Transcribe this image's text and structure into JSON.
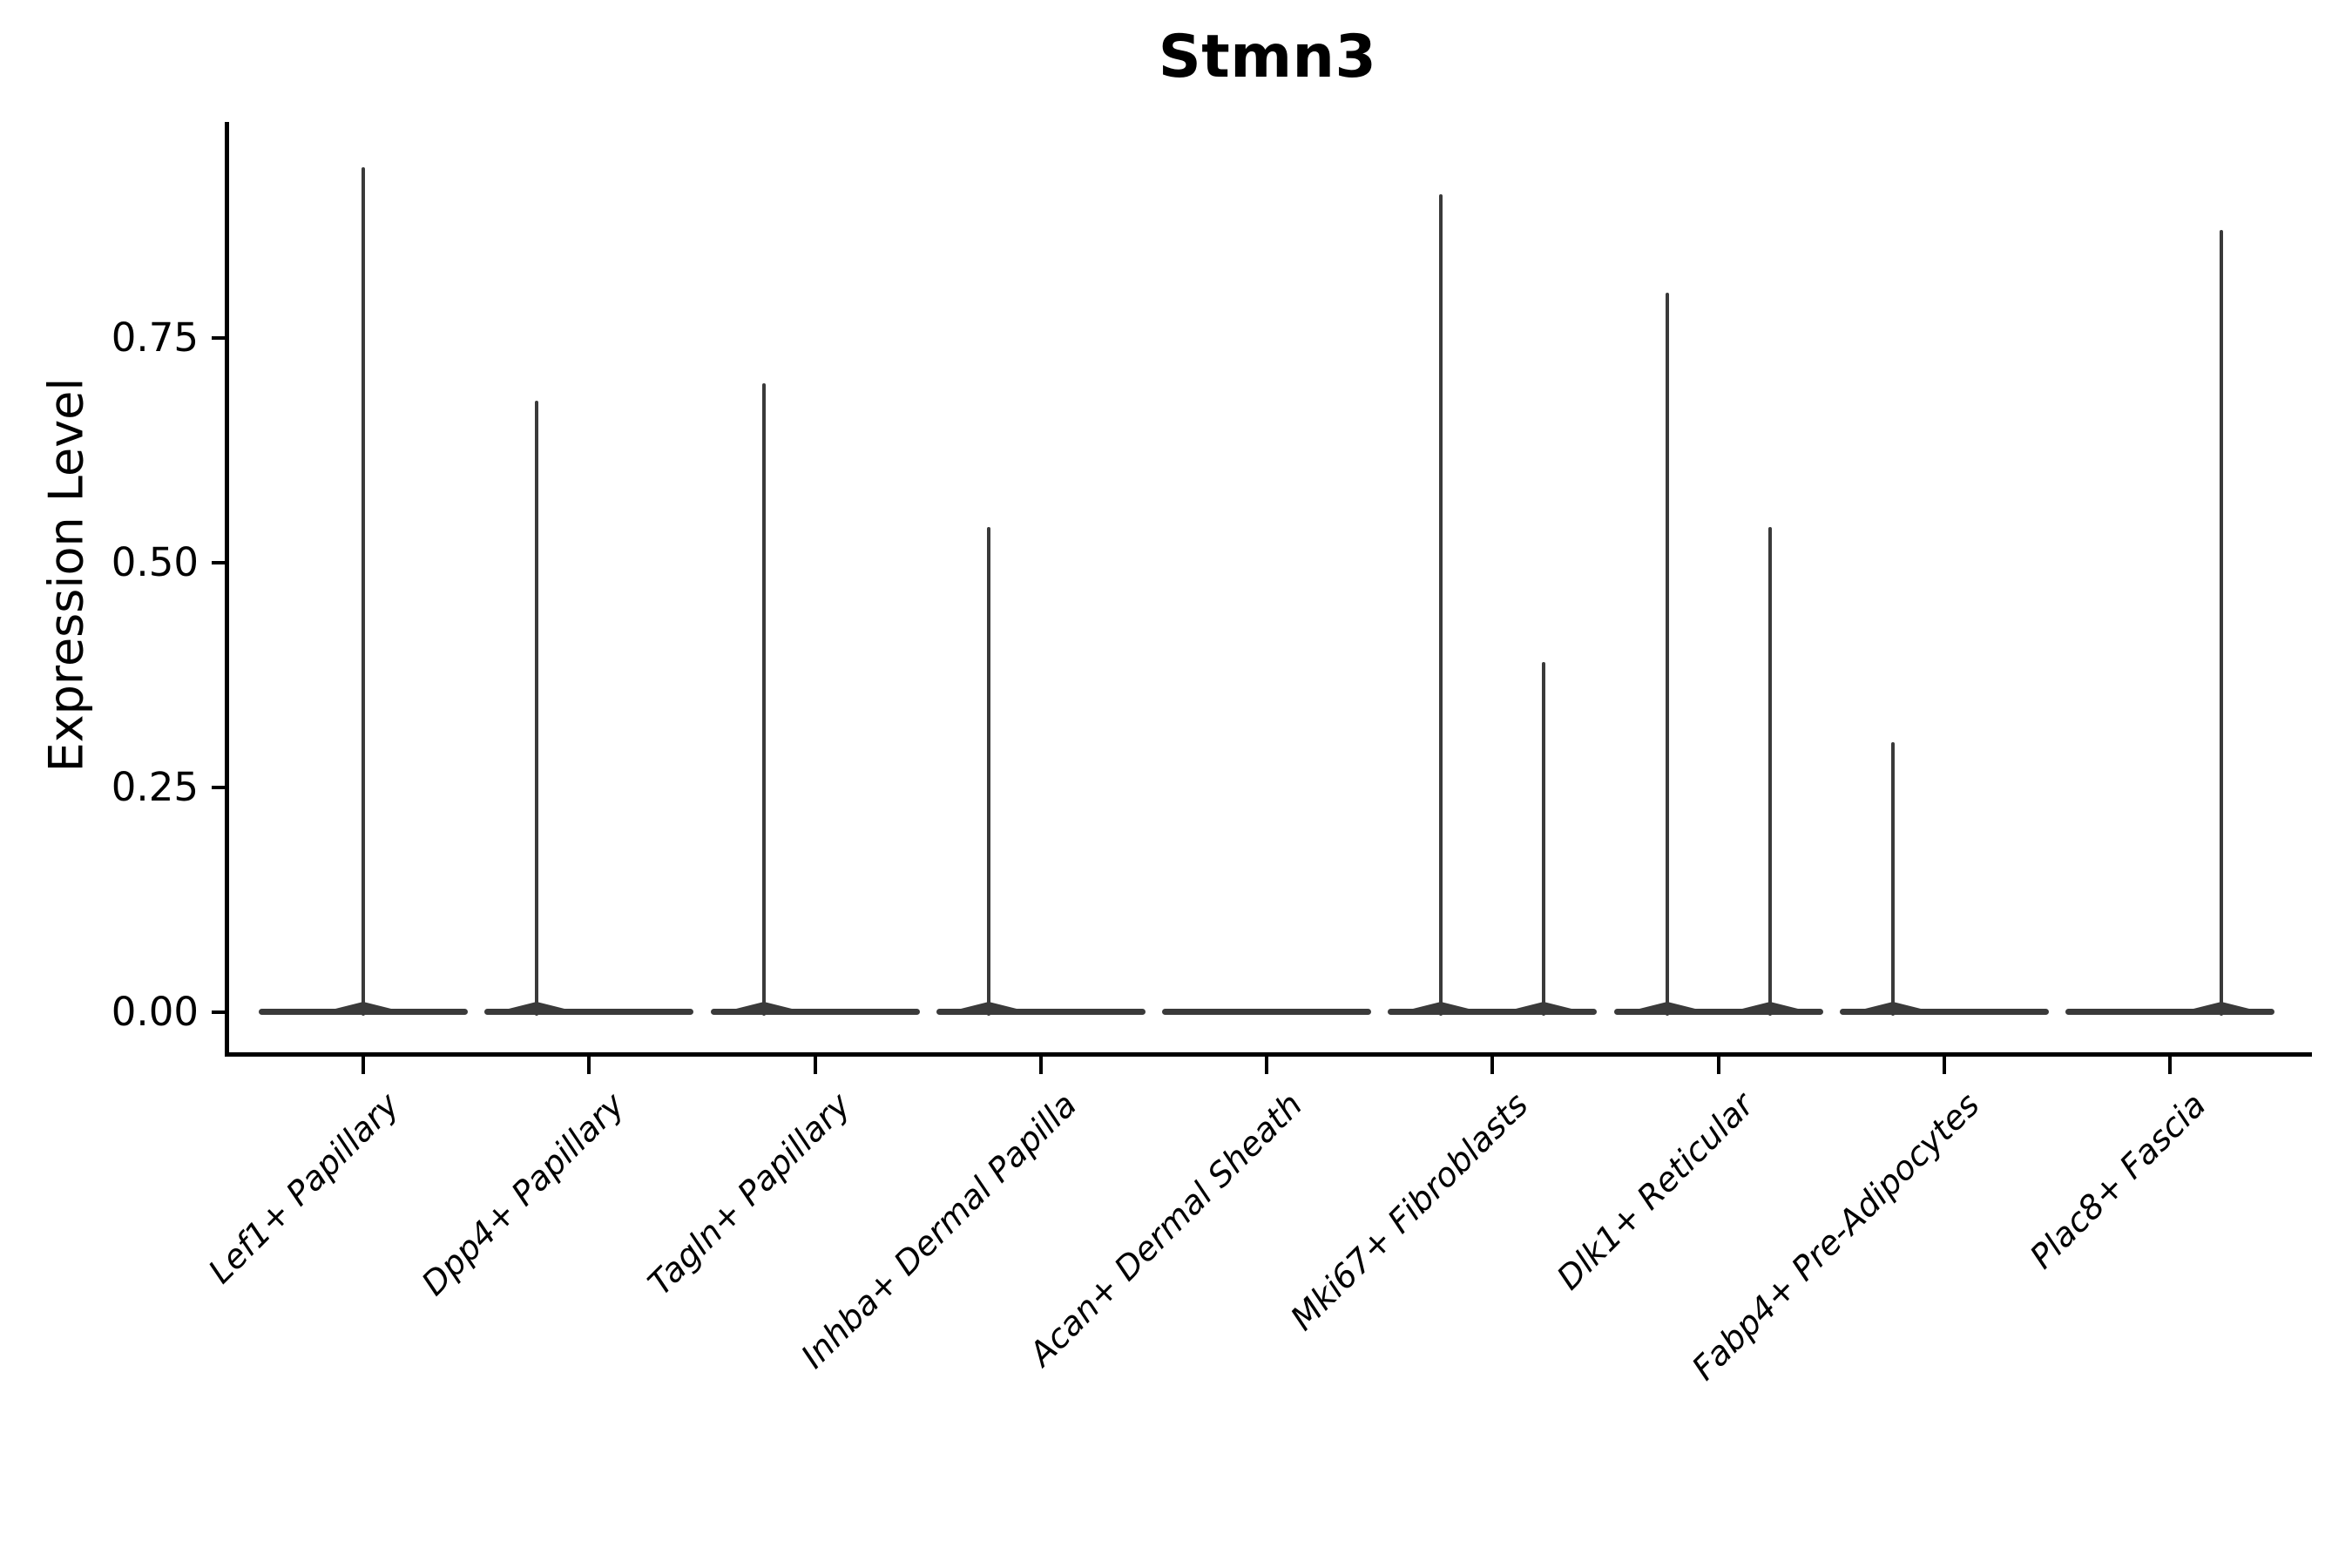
{
  "colors": {
    "foreground": "#000000",
    "violin": "#3a3a3a",
    "background": "#ffffff"
  },
  "chart_data": {
    "type": "violin",
    "title": "Stmn3",
    "xlabel": "",
    "ylabel": "Expression Level",
    "grid": false,
    "legend": null,
    "ylim": [
      -0.05,
      0.99
    ],
    "yticks": {
      "values": [
        0.0,
        0.25,
        0.5,
        0.75
      ],
      "labels": [
        "0.00",
        "0.25",
        "0.50",
        "0.75"
      ]
    },
    "categories": [
      "Lef1+ Papillary",
      "Dpp4+ Papillary",
      "Tagln+ Papillary",
      "Inhba+ Dermal Papilla",
      "Acan+ Dermal Sheath",
      "Mki67+ Fibroblasts",
      "Dlk1+ Reticular",
      "Fabp4+ Pre-Adipocytes",
      "Plac8+ Fascia"
    ],
    "violins": [
      {
        "category": "Lef1+ Papillary",
        "base_at_zero": true,
        "spikes": [
          {
            "x_offset": 0,
            "max_expression": 0.94
          }
        ]
      },
      {
        "category": "Dpp4+ Papillary",
        "base_at_zero": true,
        "spikes": [
          {
            "x_offset": -60,
            "max_expression": 0.68
          }
        ]
      },
      {
        "category": "Tagln+ Papillary",
        "base_at_zero": true,
        "spikes": [
          {
            "x_offset": -59,
            "max_expression": 0.7
          }
        ]
      },
      {
        "category": "Inhba+ Dermal Papilla",
        "base_at_zero": true,
        "spikes": [
          {
            "x_offset": -60,
            "max_expression": 0.54
          }
        ]
      },
      {
        "category": "Acan+ Dermal Sheath",
        "base_at_zero": true,
        "spikes": []
      },
      {
        "category": "Mki67+ Fibroblasts",
        "base_at_zero": true,
        "spikes": [
          {
            "x_offset": -59,
            "max_expression": 0.91
          },
          {
            "x_offset": 59,
            "max_expression": 0.39
          }
        ]
      },
      {
        "category": "Dlk1+ Reticular",
        "base_at_zero": true,
        "spikes": [
          {
            "x_offset": -59,
            "max_expression": 0.8
          },
          {
            "x_offset": 59,
            "max_expression": 0.54
          }
        ]
      },
      {
        "category": "Fabp4+ Pre-Adipocytes",
        "base_at_zero": true,
        "spikes": [
          {
            "x_offset": -59,
            "max_expression": 0.3
          }
        ]
      },
      {
        "category": "Plac8+ Fascia",
        "base_at_zero": true,
        "spikes": [
          {
            "x_offset": 59,
            "max_expression": 0.87
          }
        ]
      }
    ]
  }
}
